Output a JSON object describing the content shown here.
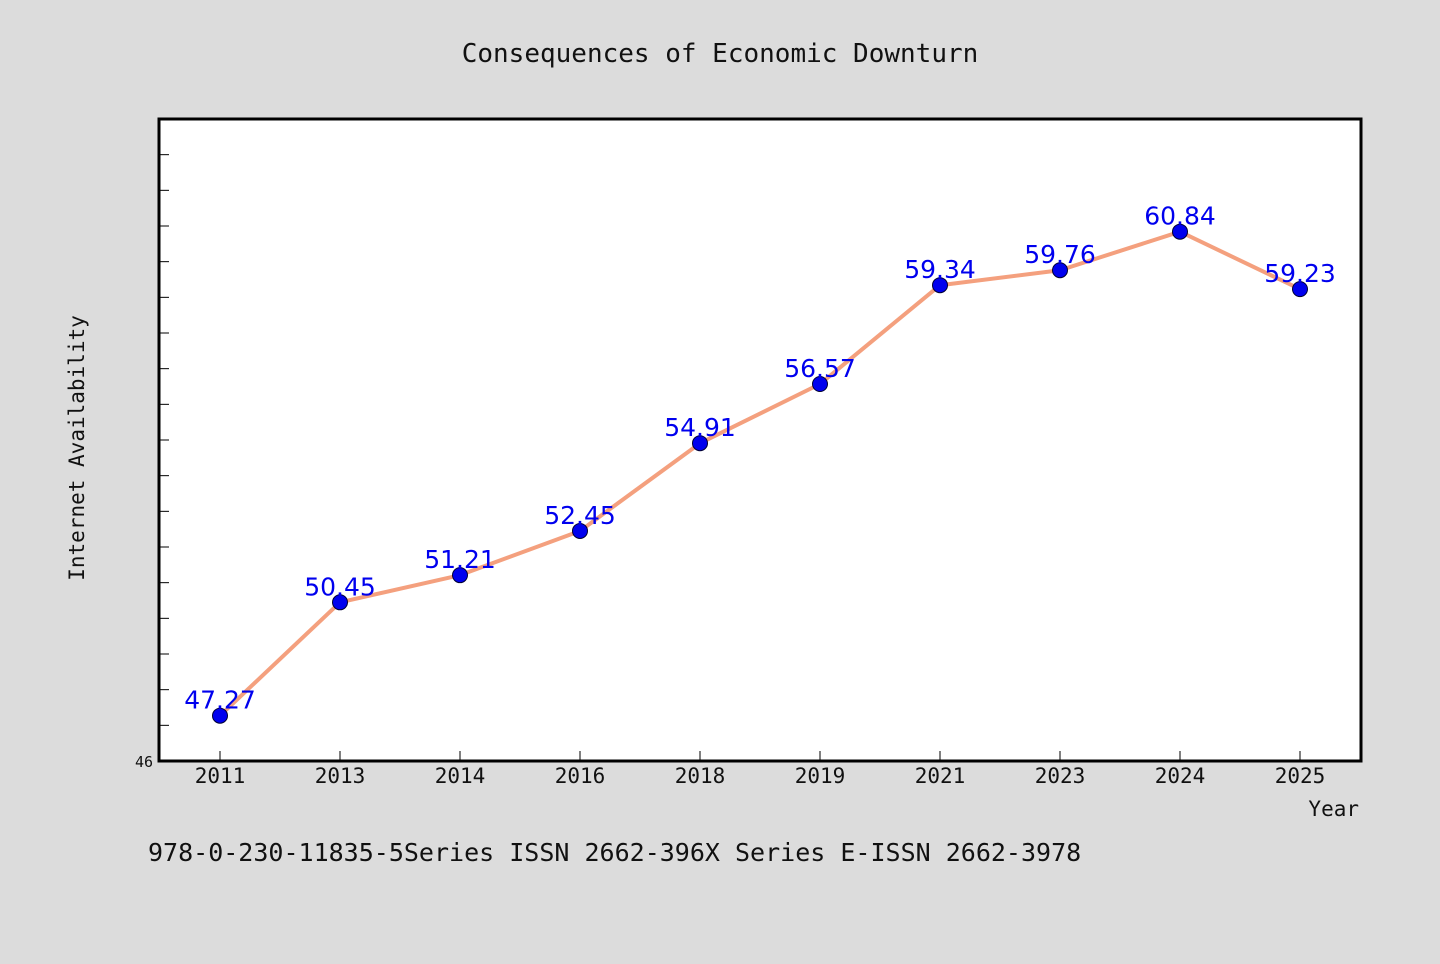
{
  "chart_data": {
    "type": "line",
    "title": "Consequences of Economic Downturn",
    "xlabel": "Year",
    "ylabel": "Internet Availability",
    "categories": [
      "2011",
      "2013",
      "2014",
      "2016",
      "2018",
      "2019",
      "2021",
      "2023",
      "2024",
      "2025"
    ],
    "series": [
      {
        "values": [
          47.27,
          50.45,
          51.21,
          52.45,
          54.91,
          56.57,
          59.34,
          59.76,
          60.84,
          59.23
        ]
      }
    ],
    "data_labels": [
      "47.27",
      "50.45",
      "51.21",
      "52.45",
      "54.91",
      "56.57",
      "59.34",
      "59.76",
      "60.84",
      "59.23"
    ],
    "ylim": [
      46,
      64
    ],
    "yticks_labeled": [
      "46"
    ],
    "y_minor_tick_step": 1,
    "grid": false,
    "legend": "none",
    "colors": {
      "line": "#f4a07e",
      "marker": "#0000ee",
      "label": "#0000ee",
      "background": "#dcdcdc",
      "plot_bg": "#ffffff"
    }
  },
  "footer": {
    "text": "978-0-230-11835-5Series ISSN 2662-396X Series E-ISSN 2662-3978"
  }
}
